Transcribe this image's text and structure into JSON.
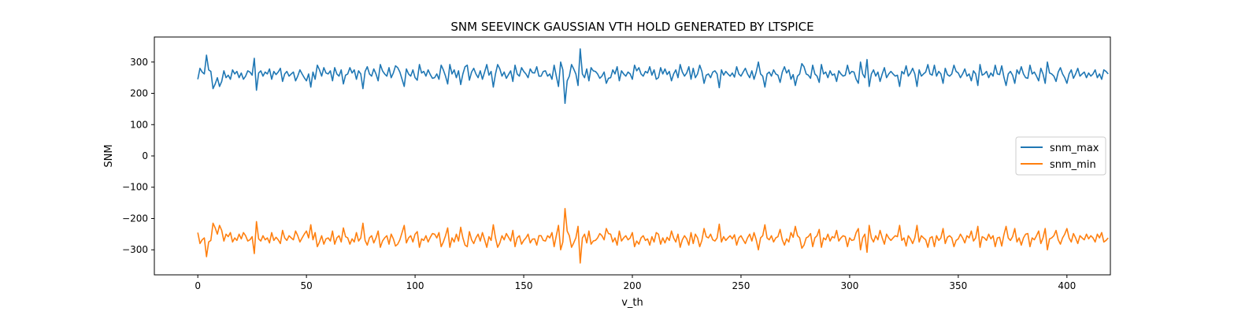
{
  "colors": {
    "snm_max": "#1f77b4",
    "snm_min": "#ff7f0e"
  },
  "chart_data": {
    "type": "line",
    "title": "SNM SEEVINCK GAUSSIAN VTH HOLD GENERATED BY LTSPICE",
    "xlabel": "v_th",
    "ylabel": "SNM",
    "xlim": [
      -20,
      420
    ],
    "ylim": [
      -380,
      380
    ],
    "xticks": [
      0,
      50,
      100,
      150,
      200,
      250,
      300,
      350,
      400
    ],
    "yticks": [
      -300,
      -200,
      -100,
      0,
      100,
      200,
      300
    ],
    "xtick_labels": [
      "0",
      "50",
      "100",
      "150",
      "200",
      "250",
      "300",
      "350",
      "400"
    ],
    "ytick_labels": [
      "−300",
      "−200",
      "−100",
      "0",
      "100",
      "200",
      "300"
    ],
    "legend_position": "center-right",
    "x_start": 0,
    "x_step": 1,
    "series": [
      {
        "name": "snm_max",
        "color": "#1f77b4",
        "values": [
          245,
          280,
          268,
          262,
          322,
          275,
          270,
          215,
          230,
          250,
          222,
          238,
          272,
          250,
          258,
          245,
          275,
          262,
          270,
          250,
          265,
          245,
          255,
          272,
          268,
          258,
          312,
          210,
          265,
          272,
          255,
          268,
          262,
          278,
          245,
          270,
          260,
          268,
          280,
          238,
          262,
          270,
          255,
          262,
          268,
          240,
          255,
          275,
          262,
          250,
          240,
          262,
          220,
          268,
          245,
          290,
          275,
          255,
          282,
          265,
          262,
          272,
          240,
          282,
          262,
          255,
          275,
          230,
          258,
          262,
          282,
          265,
          275,
          245,
          272,
          262,
          215,
          270,
          285,
          262,
          255,
          278,
          262,
          240,
          292,
          272,
          262,
          255,
          282,
          250,
          265,
          288,
          282,
          268,
          245,
          222,
          278,
          262,
          255,
          275,
          250,
          242,
          292,
          265,
          270,
          255,
          275,
          260,
          248,
          250,
          262,
          245,
          290,
          275,
          255,
          230,
          292,
          262,
          275,
          250,
          272,
          228,
          262,
          285,
          290,
          242,
          268,
          280,
          262,
          250,
          272,
          245,
          268,
          292,
          258,
          270,
          220,
          262,
          292,
          278,
          255,
          268,
          248,
          260,
          272,
          238,
          290,
          262,
          255,
          282,
          270,
          262,
          250,
          278,
          266,
          265,
          285,
          255,
          255,
          270,
          272,
          255,
          262,
          245,
          290,
          255,
          222,
          300,
          275,
          168,
          240,
          255,
          292,
          278,
          262,
          225,
          342,
          262,
          250,
          278,
          240,
          282,
          272,
          270,
          262,
          248,
          255,
          268,
          232,
          248,
          250,
          275,
          262,
          285,
          240,
          272,
          262,
          255,
          268,
          262,
          245,
          290,
          272,
          282,
          262,
          255,
          270,
          265,
          285,
          258,
          275,
          245,
          250,
          282,
          262,
          278,
          260,
          270,
          240,
          262,
          275,
          250,
          292,
          268,
          255,
          265,
          285,
          245,
          280,
          250,
          262,
          290,
          270,
          232,
          258,
          262,
          250,
          268,
          272,
          262,
          218,
          275,
          258,
          270,
          262,
          255,
          265,
          252,
          285,
          262,
          255,
          268,
          280,
          262,
          250,
          272,
          245,
          268,
          300,
          262,
          255,
          220,
          262,
          268,
          255,
          275,
          262,
          258,
          235,
          268,
          285,
          265,
          275,
          245,
          260,
          225,
          255,
          262,
          295,
          285,
          262,
          258,
          248,
          290,
          262,
          255,
          235,
          292,
          262,
          268,
          250,
          272,
          258,
          262,
          238,
          272,
          262,
          255,
          258,
          290,
          262,
          270,
          268,
          245,
          232,
          300,
          262,
          250,
          308,
          222,
          262,
          275,
          255,
          268,
          238,
          262,
          282,
          250,
          262,
          270,
          262,
          255,
          258,
          222,
          270,
          262,
          288,
          255,
          265,
          280,
          262,
          222,
          275,
          255,
          262,
          268,
          292,
          262,
          258,
          290,
          255,
          270,
          262,
          232,
          280,
          260,
          255,
          262,
          290,
          270,
          265,
          250,
          262,
          278,
          255,
          262,
          240,
          272,
          262,
          225,
          292,
          258,
          262,
          270,
          250,
          265,
          255,
          290,
          262,
          260,
          288,
          252,
          225,
          262,
          270,
          258,
          232,
          275,
          262,
          285,
          262,
          250,
          248,
          290,
          262,
          268,
          255,
          240,
          280,
          262,
          232,
          300,
          265,
          262,
          255,
          238,
          268,
          282,
          262,
          250,
          232,
          262,
          275,
          248,
          262,
          280,
          255,
          262,
          268,
          250,
          265,
          255,
          262,
          275,
          250,
          262,
          245,
          275,
          270,
          262
        ],
        "values_note": ""
      },
      {
        "name": "snm_min",
        "color": "#ff7f0e",
        "values": []
      }
    ]
  }
}
